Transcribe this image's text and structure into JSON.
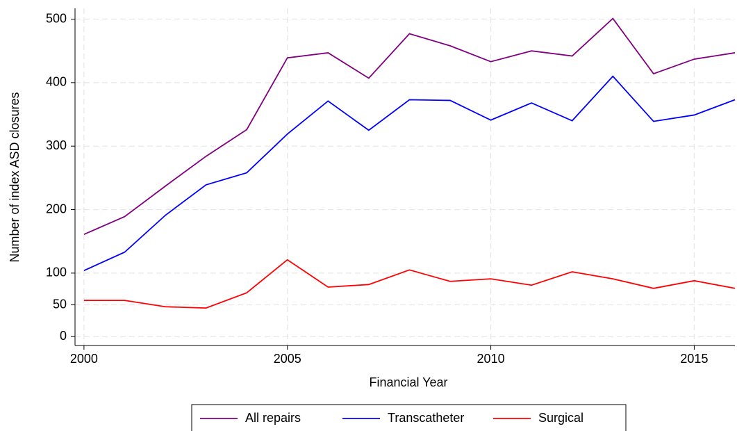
{
  "chart_data": {
    "type": "line",
    "x_label": "Financial Year",
    "y_label": "Number of index ASD closures",
    "x": [
      2000,
      2001,
      2002,
      2003,
      2004,
      2005,
      2006,
      2007,
      2008,
      2009,
      2010,
      2011,
      2012,
      2013,
      2014,
      2015,
      2016
    ],
    "series": [
      {
        "name": "All repairs",
        "color": "#800080",
        "values": [
          161,
          189,
          237,
          284,
          326,
          439,
          447,
          407,
          477,
          458,
          433,
          450,
          442,
          501,
          414,
          437,
          447
        ]
      },
      {
        "name": "Transcatheter",
        "color": "#0000ff",
        "values": [
          104,
          133,
          191,
          239,
          258,
          319,
          371,
          325,
          373,
          372,
          341,
          368,
          340,
          410,
          339,
          349,
          373
        ]
      },
      {
        "name": "Surgical",
        "color": "#ff0000",
        "values": [
          57,
          57,
          47,
          45,
          69,
          121,
          78,
          82,
          105,
          87,
          91,
          81,
          102,
          91,
          76,
          88,
          76
        ]
      }
    ],
    "xlim": [
      1999.78,
      2016
    ],
    "xticks": [
      2000,
      2005,
      2010,
      2015
    ],
    "ylim": [
      -14,
      517
    ],
    "yticks": [
      0,
      50,
      100,
      200,
      300,
      400,
      500
    ],
    "grid": true,
    "legend": "bottom"
  }
}
